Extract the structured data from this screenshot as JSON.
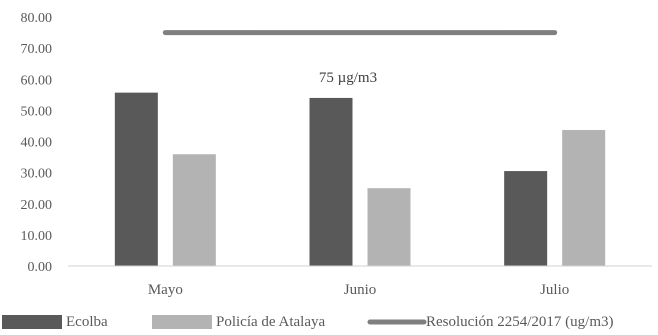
{
  "chart_data": {
    "type": "bar",
    "categories": [
      "Mayo",
      "Junio",
      "Julio"
    ],
    "series": [
      {
        "name": "Ecolba",
        "type": "bar",
        "color": "#595959",
        "values": [
          55.7,
          54.0,
          30.5
        ]
      },
      {
        "name": "Policía de Atalaya",
        "type": "bar",
        "color": "#b3b3b3",
        "values": [
          35.9,
          25.0,
          43.7
        ]
      },
      {
        "name": "Resolución 2254/2017 (ug/m3)",
        "type": "line",
        "color": "#7f7f7f",
        "values": [
          75,
          75,
          75
        ]
      }
    ],
    "y_ticks": [
      "0.00",
      "10.00",
      "20.00",
      "30.00",
      "40.00",
      "50.00",
      "60.00",
      "70.00",
      "80.00"
    ],
    "ylim": [
      0,
      80
    ],
    "annotation": "75 µg/m3",
    "grid": false,
    "legend_position": "bottom"
  }
}
